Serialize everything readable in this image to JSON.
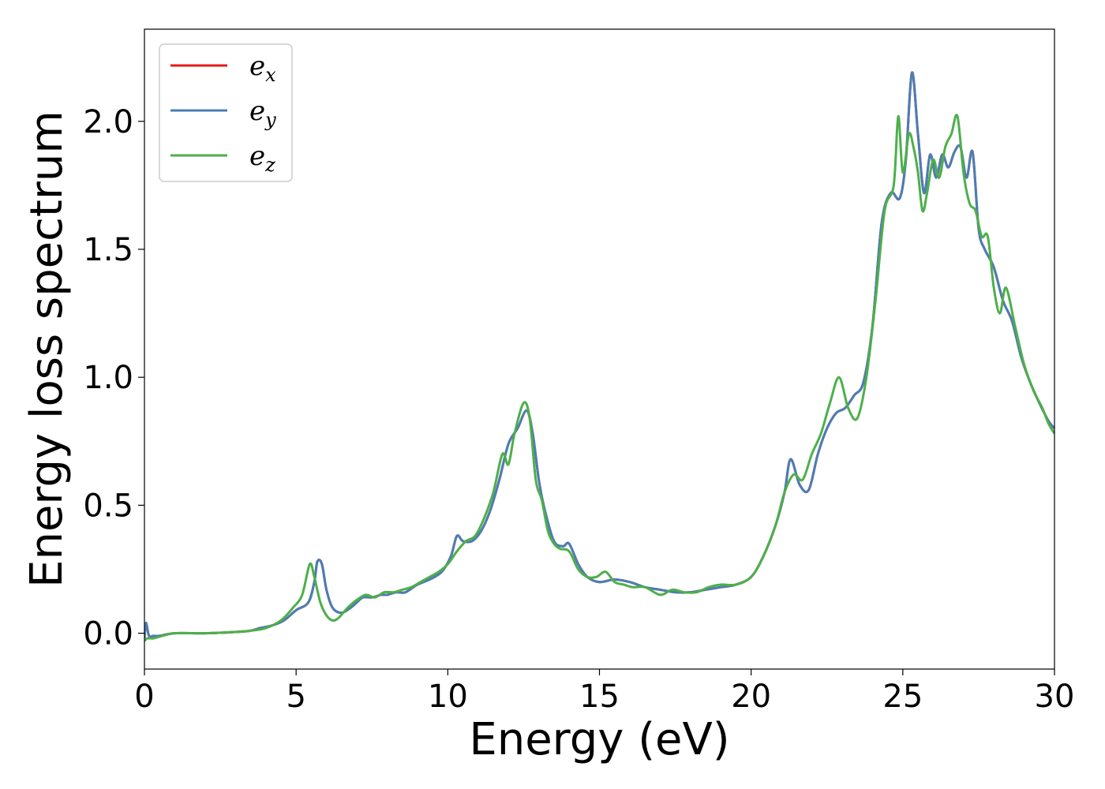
{
  "chart_data": {
    "type": "line",
    "xlabel": "Energy (eV)",
    "ylabel": "Energy loss spectrum",
    "xlim": [
      0,
      30
    ],
    "ylim": [
      -0.14,
      2.36
    ],
    "xticks": [
      0,
      5,
      10,
      15,
      20,
      25,
      30
    ],
    "xtick_labels": [
      "0",
      "5",
      "10",
      "15",
      "20",
      "25",
      "30"
    ],
    "yticks": [
      0.0,
      0.5,
      1.0,
      1.5,
      2.0
    ],
    "ytick_labels": [
      "0.0",
      "0.5",
      "1.0",
      "1.5",
      "2.0"
    ],
    "grid": false,
    "legend_position": "top-left",
    "series": [
      {
        "name": "e_x",
        "legend_base": "e",
        "legend_sub": "x",
        "color": "#e41a1c",
        "x": [
          0,
          0.05,
          0.15,
          0.3,
          0.5,
          1,
          2,
          3,
          3.5,
          3.8,
          4.2,
          4.6,
          5.0,
          5.4,
          5.6,
          5.7,
          5.85,
          6.0,
          6.2,
          6.5,
          6.8,
          7.0,
          7.2,
          7.5,
          7.8,
          8.0,
          8.3,
          8.6,
          9.0,
          9.4,
          9.8,
          10.1,
          10.3,
          10.5,
          10.8,
          11.1,
          11.4,
          11.7,
          12.0,
          12.3,
          12.6,
          12.8,
          13.0,
          13.2,
          13.5,
          13.8,
          14.0,
          14.3,
          14.6,
          15.0,
          15.5,
          16.0,
          16.5,
          17.0,
          17.5,
          18.0,
          18.5,
          19.0,
          19.5,
          20.0,
          20.4,
          20.8,
          21.1,
          21.3,
          21.6,
          21.9,
          22.2,
          22.5,
          22.8,
          23.1,
          23.4,
          23.7,
          24.0,
          24.3,
          24.6,
          24.9,
          25.1,
          25.3,
          25.5,
          25.7,
          25.9,
          26.1,
          26.3,
          26.5,
          26.7,
          26.9,
          27.1,
          27.3,
          27.5,
          27.7,
          28.0,
          28.3,
          28.6,
          28.9,
          29.2,
          29.5,
          29.8,
          30.0
        ],
        "y": [
          -0.02,
          0.04,
          -0.01,
          -0.01,
          -0.01,
          0.0,
          0.0,
          0.005,
          0.01,
          0.02,
          0.03,
          0.05,
          0.09,
          0.12,
          0.2,
          0.28,
          0.27,
          0.17,
          0.1,
          0.08,
          0.1,
          0.12,
          0.14,
          0.14,
          0.15,
          0.15,
          0.16,
          0.16,
          0.19,
          0.21,
          0.24,
          0.3,
          0.38,
          0.36,
          0.36,
          0.4,
          0.48,
          0.6,
          0.74,
          0.8,
          0.87,
          0.78,
          0.6,
          0.48,
          0.36,
          0.34,
          0.35,
          0.27,
          0.22,
          0.2,
          0.21,
          0.2,
          0.18,
          0.17,
          0.16,
          0.16,
          0.17,
          0.18,
          0.19,
          0.22,
          0.3,
          0.42,
          0.55,
          0.68,
          0.58,
          0.56,
          0.7,
          0.8,
          0.86,
          0.88,
          0.93,
          0.98,
          1.2,
          1.6,
          1.72,
          1.7,
          1.85,
          2.19,
          1.95,
          1.72,
          1.87,
          1.78,
          1.87,
          1.82,
          1.88,
          1.9,
          1.78,
          1.88,
          1.58,
          1.5,
          1.43,
          1.3,
          1.22,
          1.08,
          0.98,
          0.9,
          0.83,
          0.8
        ]
      },
      {
        "name": "e_y",
        "legend_base": "e",
        "legend_sub": "y",
        "color": "#4a7eb5",
        "x": [
          0,
          0.05,
          0.15,
          0.3,
          0.5,
          1,
          2,
          3,
          3.5,
          3.8,
          4.2,
          4.6,
          5.0,
          5.4,
          5.6,
          5.7,
          5.85,
          6.0,
          6.2,
          6.5,
          6.8,
          7.0,
          7.2,
          7.5,
          7.8,
          8.0,
          8.3,
          8.6,
          9.0,
          9.4,
          9.8,
          10.1,
          10.3,
          10.5,
          10.8,
          11.1,
          11.4,
          11.7,
          12.0,
          12.3,
          12.6,
          12.8,
          13.0,
          13.2,
          13.5,
          13.8,
          14.0,
          14.3,
          14.6,
          15.0,
          15.5,
          16.0,
          16.5,
          17.0,
          17.5,
          18.0,
          18.5,
          19.0,
          19.5,
          20.0,
          20.4,
          20.8,
          21.1,
          21.3,
          21.6,
          21.9,
          22.2,
          22.5,
          22.8,
          23.1,
          23.4,
          23.7,
          24.0,
          24.3,
          24.6,
          24.9,
          25.1,
          25.3,
          25.5,
          25.7,
          25.9,
          26.1,
          26.3,
          26.5,
          26.7,
          26.9,
          27.1,
          27.3,
          27.5,
          27.7,
          28.0,
          28.3,
          28.6,
          28.9,
          29.2,
          29.5,
          29.8,
          30.0
        ],
        "y": [
          -0.02,
          0.04,
          -0.01,
          -0.01,
          -0.01,
          0.0,
          0.0,
          0.005,
          0.01,
          0.02,
          0.03,
          0.05,
          0.09,
          0.12,
          0.2,
          0.28,
          0.27,
          0.17,
          0.1,
          0.08,
          0.1,
          0.12,
          0.14,
          0.14,
          0.15,
          0.15,
          0.16,
          0.16,
          0.19,
          0.21,
          0.24,
          0.3,
          0.38,
          0.36,
          0.36,
          0.4,
          0.48,
          0.6,
          0.74,
          0.8,
          0.87,
          0.78,
          0.6,
          0.48,
          0.36,
          0.34,
          0.35,
          0.27,
          0.22,
          0.2,
          0.21,
          0.2,
          0.18,
          0.17,
          0.16,
          0.16,
          0.17,
          0.18,
          0.19,
          0.22,
          0.3,
          0.42,
          0.55,
          0.68,
          0.58,
          0.56,
          0.7,
          0.8,
          0.86,
          0.88,
          0.93,
          0.98,
          1.2,
          1.6,
          1.72,
          1.7,
          1.85,
          2.19,
          1.95,
          1.72,
          1.87,
          1.78,
          1.87,
          1.82,
          1.88,
          1.9,
          1.78,
          1.88,
          1.58,
          1.5,
          1.43,
          1.3,
          1.22,
          1.08,
          0.98,
          0.9,
          0.83,
          0.8
        ]
      },
      {
        "name": "e_z",
        "legend_base": "e",
        "legend_sub": "z",
        "color": "#4daf4a",
        "x": [
          0,
          0.1,
          0.3,
          0.6,
          1,
          2,
          3,
          3.5,
          4.0,
          4.5,
          4.9,
          5.2,
          5.45,
          5.6,
          5.8,
          6.0,
          6.2,
          6.4,
          6.7,
          7.0,
          7.3,
          7.6,
          7.9,
          8.2,
          8.5,
          8.8,
          9.1,
          9.4,
          9.7,
          10.0,
          10.3,
          10.6,
          10.9,
          11.2,
          11.5,
          11.8,
          12.0,
          12.2,
          12.5,
          12.7,
          12.9,
          13.1,
          13.3,
          13.5,
          13.7,
          14.0,
          14.3,
          14.6,
          14.9,
          15.2,
          15.5,
          15.8,
          16.1,
          16.5,
          17.0,
          17.4,
          17.8,
          18.2,
          18.6,
          19.0,
          19.5,
          20.0,
          20.4,
          20.8,
          21.1,
          21.4,
          21.7,
          22.0,
          22.3,
          22.6,
          22.9,
          23.2,
          23.5,
          23.8,
          24.1,
          24.4,
          24.7,
          24.85,
          25.0,
          25.2,
          25.35,
          25.5,
          25.65,
          25.8,
          26.0,
          26.2,
          26.4,
          26.6,
          26.8,
          27.0,
          27.2,
          27.4,
          27.6,
          27.8,
          28.0,
          28.2,
          28.4,
          28.7,
          29.0,
          29.3,
          29.6,
          29.8,
          30.0
        ],
        "y": [
          -0.03,
          -0.02,
          -0.02,
          -0.01,
          0.0,
          0.0,
          0.005,
          0.01,
          0.02,
          0.05,
          0.1,
          0.15,
          0.27,
          0.22,
          0.12,
          0.07,
          0.05,
          0.06,
          0.1,
          0.13,
          0.15,
          0.14,
          0.16,
          0.16,
          0.17,
          0.18,
          0.2,
          0.22,
          0.24,
          0.27,
          0.32,
          0.36,
          0.38,
          0.45,
          0.55,
          0.7,
          0.66,
          0.78,
          0.9,
          0.84,
          0.6,
          0.52,
          0.4,
          0.35,
          0.33,
          0.32,
          0.25,
          0.22,
          0.22,
          0.24,
          0.2,
          0.19,
          0.18,
          0.18,
          0.15,
          0.17,
          0.16,
          0.16,
          0.18,
          0.19,
          0.19,
          0.22,
          0.3,
          0.42,
          0.55,
          0.62,
          0.6,
          0.7,
          0.78,
          0.9,
          1.0,
          0.88,
          0.84,
          1.0,
          1.3,
          1.65,
          1.75,
          2.02,
          1.8,
          1.95,
          1.9,
          1.8,
          1.65,
          1.72,
          1.85,
          1.78,
          1.9,
          1.95,
          2.02,
          1.8,
          1.68,
          1.65,
          1.55,
          1.55,
          1.35,
          1.25,
          1.35,
          1.2,
          1.05,
          0.95,
          0.88,
          0.82,
          0.78
        ]
      }
    ]
  }
}
